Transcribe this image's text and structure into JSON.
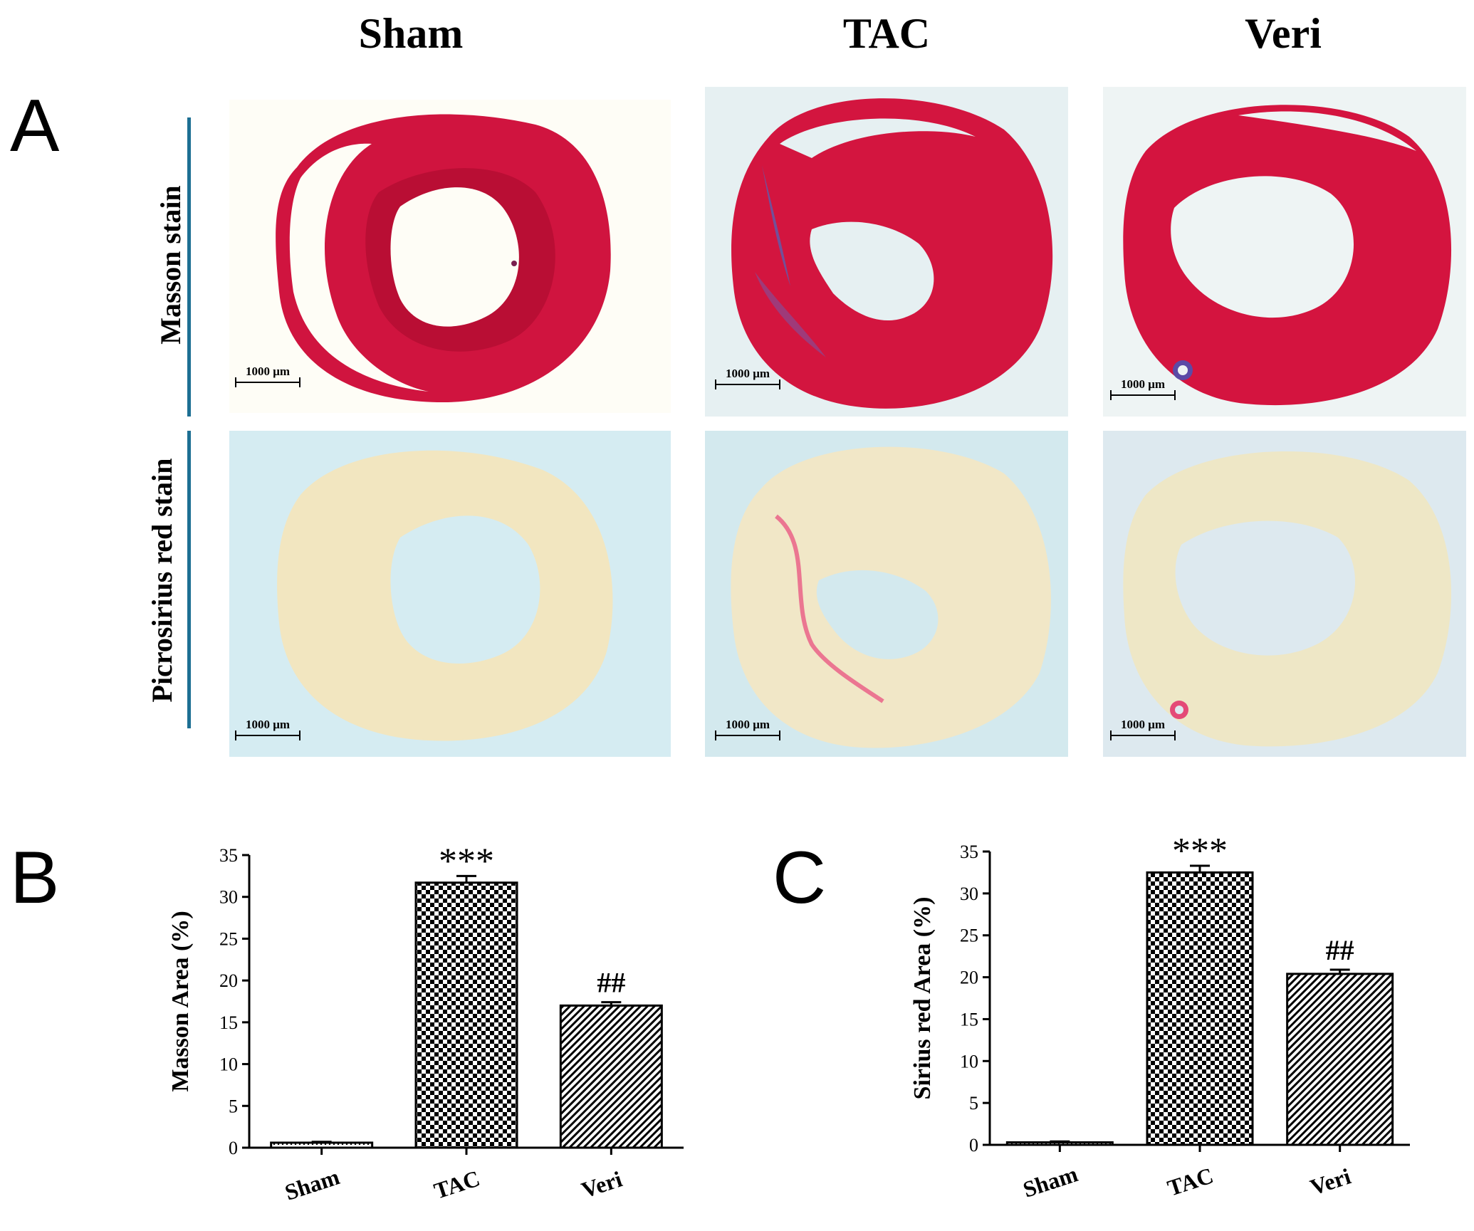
{
  "figure": {
    "column_titles": [
      "Sham",
      "TAC",
      "Veri"
    ],
    "panel_a": {
      "letter": "A",
      "rows": [
        {
          "label": "Masson stain"
        },
        {
          "label": "Picrosirius red stain"
        }
      ],
      "scale_label": "1000 μm"
    },
    "panel_b": {
      "letter": "B"
    },
    "panel_c": {
      "letter": "C"
    }
  },
  "chart_data": [
    {
      "type": "bar",
      "title": "",
      "xlabel": "",
      "ylabel": "Masson Area (%)",
      "categories": [
        "Sham",
        "TAC",
        "Veri"
      ],
      "values": [
        0.6,
        31.7,
        17.0
      ],
      "errors": [
        0.1,
        0.8,
        0.4
      ],
      "annotations": [
        "",
        "***",
        "##"
      ],
      "ylim": [
        0,
        35
      ],
      "yticks": [
        "0",
        "5",
        "10",
        "15",
        "20",
        "25",
        "30",
        "35"
      ],
      "patterns": [
        "dots",
        "checker",
        "diagonal"
      ]
    },
    {
      "type": "bar",
      "title": "",
      "xlabel": "",
      "ylabel": "Sirius red  Area (%)",
      "categories": [
        "Sham",
        "TAC",
        "Veri"
      ],
      "values": [
        0.3,
        32.5,
        20.4
      ],
      "errors": [
        0.1,
        0.8,
        0.5
      ],
      "annotations": [
        "",
        "***",
        "##"
      ],
      "ylim": [
        0,
        35
      ],
      "yticks": [
        "0",
        "5",
        "10",
        "15",
        "20",
        "25",
        "30",
        "35"
      ],
      "patterns": [
        "dots",
        "checker",
        "diagonal"
      ]
    }
  ]
}
